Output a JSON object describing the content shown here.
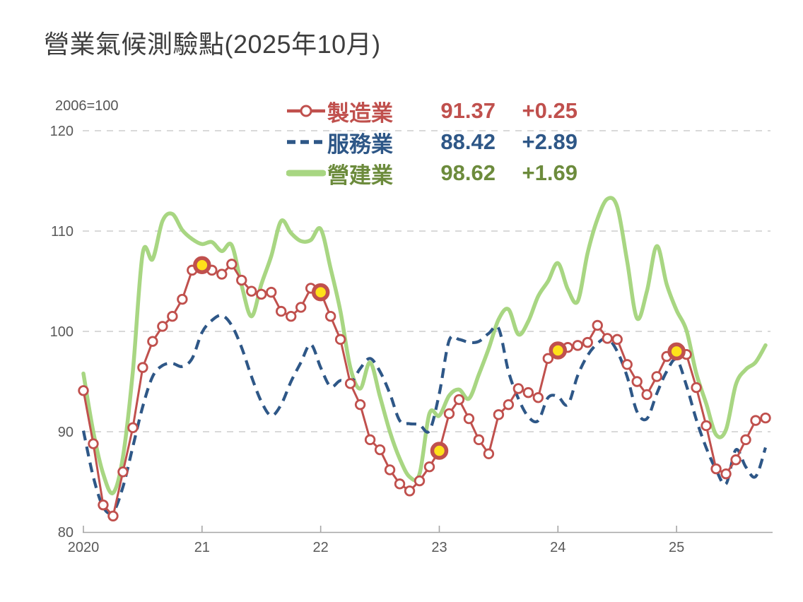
{
  "title": "營業氣候測驗點(2025年10月)",
  "unit_note": "2006=100",
  "legend": [
    {
      "name": "製造業",
      "value": "91.37",
      "change": "+0.25",
      "text_color": "#C0504D",
      "line_color": "#C0504D",
      "swatch": "line-with-circle"
    },
    {
      "name": "服務業",
      "value": "88.42",
      "change": "+2.89",
      "text_color": "#2E5787",
      "line_color": "#2E5787",
      "swatch": "dashed-line"
    },
    {
      "name": "營建業",
      "value": "98.62",
      "change": "+1.69",
      "text_color": "#6C8B3C",
      "line_color": "#A8D682",
      "swatch": "thick-line"
    }
  ],
  "colors": {
    "manufacturing": "#C0504D",
    "services": "#2E5787",
    "construction": "#A8D682",
    "highlight_fill": "#FFE11A",
    "highlight_ring": "#C0504D",
    "grid": "#D9D9D9",
    "axis": "#A6A6A6",
    "axis_text": "#595959",
    "marker_fill": "#FFFFFF"
  },
  "chart_data": {
    "type": "line",
    "title": "營業氣候測驗點(2025年10月)",
    "subtitle_note": "2006=100",
    "x_months": {
      "start": "2020-01",
      "end": "2025-10",
      "freq": "monthly",
      "count": 70
    },
    "x_tick_labels": [
      "2020",
      "21",
      "22",
      "23",
      "24",
      "25"
    ],
    "x_tick_indices": [
      0,
      12,
      24,
      36,
      48,
      60
    ],
    "ylim": [
      80,
      120
    ],
    "y_ticks": [
      80,
      90,
      100,
      110,
      120
    ],
    "grid": true,
    "legend_position": "top-center",
    "highlighted_red_point_indices": [
      12,
      24,
      36,
      48,
      60
    ],
    "series": [
      {
        "name": "營建業",
        "style": "solid-thick-smooth",
        "color": "#A8D682",
        "latest": 98.62,
        "change": 1.69,
        "values": [
          95.8,
          90.0,
          85.8,
          83.9,
          87.5,
          96.0,
          107.8,
          107.2,
          111.0,
          111.7,
          110.1,
          109.2,
          108.7,
          108.9,
          108.0,
          108.6,
          104.6,
          101.5,
          104.7,
          107.5,
          111.0,
          109.8,
          109.0,
          109.1,
          110.2,
          106.3,
          102.0,
          96.4,
          94.3,
          96.9,
          93.5,
          90.0,
          87.3,
          85.5,
          85.8,
          91.8,
          91.6,
          93.6,
          94.2,
          93.3,
          95.7,
          98.3,
          101.2,
          102.2,
          99.7,
          101.0,
          103.5,
          105.0,
          106.8,
          104.2,
          103.0,
          107.8,
          111.2,
          113.2,
          112.4,
          107.0,
          101.3,
          104.0,
          108.5,
          104.7,
          102.1,
          100.1,
          95.8,
          92.8,
          89.7,
          90.2,
          94.7,
          96.2,
          96.93,
          98.62
        ]
      },
      {
        "name": "服務業",
        "style": "dashed-smooth",
        "color": "#2E5787",
        "latest": 88.42,
        "change": 2.89,
        "values": [
          90.1,
          85.5,
          82.5,
          82.0,
          84.5,
          88.5,
          92.5,
          95.5,
          96.6,
          96.8,
          96.5,
          97.3,
          99.9,
          101.1,
          101.6,
          100.6,
          98.4,
          95.5,
          93.0,
          91.6,
          92.7,
          95.0,
          96.9,
          98.7,
          96.4,
          94.5,
          95.1,
          94.8,
          96.3,
          97.3,
          96.0,
          93.8,
          91.1,
          90.8,
          90.7,
          90.1,
          93.8,
          99.1,
          99.2,
          98.9,
          99.0,
          99.8,
          100.3,
          96.0,
          93.3,
          91.5,
          91.1,
          93.4,
          93.5,
          92.7,
          95.6,
          97.6,
          98.8,
          99.3,
          98.0,
          95.5,
          92.0,
          91.3,
          93.8,
          96.0,
          97.2,
          94.6,
          91.2,
          88.4,
          86.2,
          84.8,
          88.2,
          86.5,
          85.53,
          88.42
        ]
      },
      {
        "name": "製造業",
        "style": "solid-with-open-circle-markers",
        "color": "#C0504D",
        "latest": 91.37,
        "change": 0.25,
        "values": [
          94.1,
          88.8,
          82.7,
          81.6,
          86.0,
          90.4,
          96.4,
          99.0,
          100.5,
          101.5,
          103.2,
          106.1,
          106.6,
          106.1,
          105.7,
          106.7,
          105.1,
          104.0,
          103.7,
          103.9,
          102.0,
          101.5,
          102.4,
          104.3,
          103.9,
          101.5,
          99.2,
          94.8,
          92.7,
          89.2,
          88.2,
          86.2,
          84.8,
          84.1,
          85.1,
          86.5,
          88.1,
          91.8,
          93.2,
          91.3,
          89.2,
          87.8,
          91.7,
          92.7,
          94.3,
          93.9,
          93.4,
          97.3,
          98.1,
          98.4,
          98.6,
          98.9,
          100.6,
          99.3,
          99.2,
          96.7,
          95.0,
          93.7,
          95.5,
          97.5,
          98.0,
          97.7,
          94.4,
          90.6,
          86.3,
          85.8,
          87.2,
          89.2,
          91.12,
          91.37
        ]
      }
    ]
  }
}
